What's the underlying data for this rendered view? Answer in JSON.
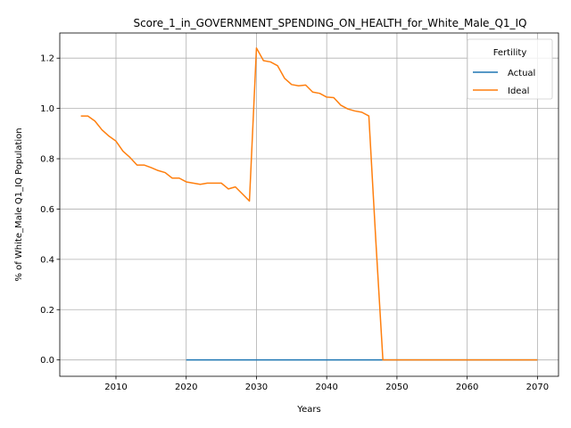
{
  "chart_data": {
    "type": "line",
    "title": "Score_1_in_GOVERNMENT_SPENDING_ON_HEALTH_for_White_Male_Q1_IQ",
    "xlabel": "Years",
    "ylabel": "% of White_Male Q1_IQ Population",
    "xlim": [
      2002,
      2073
    ],
    "ylim": [
      -0.065,
      1.3
    ],
    "xticks": [
      2010,
      2020,
      2030,
      2040,
      2050,
      2060,
      2070
    ],
    "yticks": [
      0.0,
      0.2,
      0.4,
      0.6,
      0.8,
      1.0,
      1.2
    ],
    "ytick_labels": [
      "0.0",
      "0.2",
      "0.4",
      "0.6",
      "0.8",
      "1.0",
      "1.2"
    ],
    "grid": true,
    "legend": {
      "title": "Fertility",
      "placement": "top-right"
    },
    "series": [
      {
        "name": "Actual",
        "color": "#1f77b4",
        "x": [
          2020,
          2070
        ],
        "y": [
          0.0,
          0.0
        ]
      },
      {
        "name": "Ideal",
        "color": "#ff7f0e",
        "x": [
          2005,
          2006,
          2007,
          2008,
          2009,
          2010,
          2011,
          2012,
          2013,
          2014,
          2015,
          2016,
          2017,
          2018,
          2019,
          2020,
          2021,
          2022,
          2023,
          2024,
          2025,
          2026,
          2027,
          2028,
          2029,
          2030,
          2031,
          2032,
          2033,
          2034,
          2035,
          2036,
          2037,
          2038,
          2039,
          2040,
          2041,
          2042,
          2043,
          2044,
          2045,
          2046,
          2047,
          2048,
          2049,
          2050,
          2055,
          2060,
          2065,
          2070
        ],
        "y": [
          0.97,
          0.97,
          0.95,
          0.915,
          0.89,
          0.87,
          0.83,
          0.805,
          0.775,
          0.775,
          0.765,
          0.753,
          0.745,
          0.723,
          0.723,
          0.708,
          0.703,
          0.698,
          0.703,
          0.703,
          0.703,
          0.68,
          0.688,
          0.66,
          0.632,
          1.24,
          1.19,
          1.185,
          1.17,
          1.12,
          1.095,
          1.09,
          1.093,
          1.065,
          1.06,
          1.045,
          1.043,
          1.013,
          0.998,
          0.99,
          0.985,
          0.97,
          0.47,
          0.0,
          0.0,
          0.0,
          0.0,
          0.0,
          0.0,
          0.0
        ]
      }
    ]
  }
}
